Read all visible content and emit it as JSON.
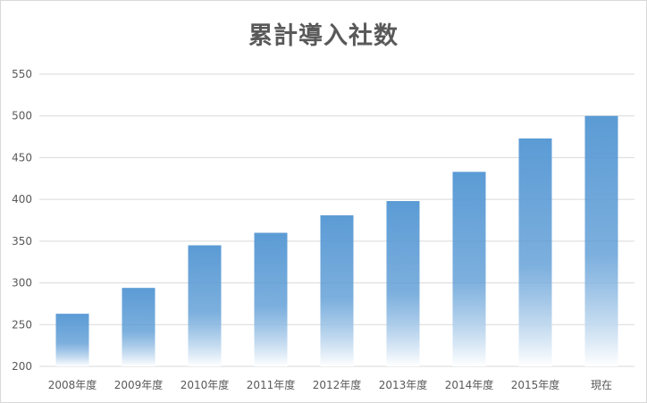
{
  "chart_data": {
    "type": "bar",
    "title": "累計導入社数",
    "categories": [
      "2008年度",
      "2009年度",
      "2010年度",
      "2011年度",
      "2012年度",
      "2013年度",
      "2014年度",
      "2015年度",
      "現在"
    ],
    "values": [
      263,
      294,
      345,
      360,
      381,
      398,
      433,
      473,
      500
    ],
    "ylim": [
      200,
      550
    ],
    "yticks": [
      200,
      250,
      300,
      350,
      400,
      450,
      500,
      550
    ],
    "xlabel": "",
    "ylabel": "",
    "grid": true,
    "legend": "none",
    "colors": {
      "bar_top": "#5b9bd5",
      "bar_bottom": "#ffffff",
      "gridline": "#d9d9d9",
      "text": "#595959"
    }
  }
}
